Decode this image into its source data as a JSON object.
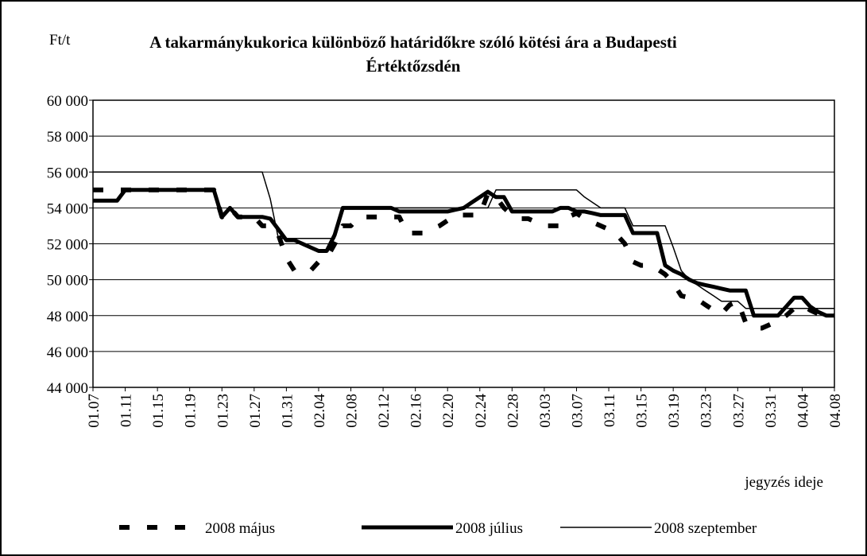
{
  "chart_data": {
    "type": "line",
    "title": "A takarmánykukorica különböző határidőkre szóló kötési ára a  Budapesti Értéktőzsdén",
    "y_label": "Ft/t",
    "x_label": "jegyzés ideje",
    "categories": [
      "01.07",
      null,
      null,
      null,
      "01.11",
      null,
      null,
      null,
      "01.15",
      null,
      null,
      null,
      "01.19",
      null,
      null,
      null,
      "01.23",
      null,
      null,
      null,
      "01.27",
      null,
      null,
      null,
      "01.31",
      null,
      null,
      null,
      "02.04",
      null,
      null,
      null,
      "02.08",
      null,
      null,
      null,
      "02.12",
      null,
      null,
      null,
      "02.16",
      null,
      null,
      null,
      "02.20",
      null,
      null,
      null,
      "02.24",
      null,
      null,
      null,
      "02.28",
      null,
      null,
      null,
      "03.03",
      null,
      null,
      null,
      "03.07",
      null,
      null,
      null,
      "03.11",
      null,
      null,
      null,
      "03.15",
      null,
      null,
      null,
      "03.19",
      null,
      null,
      null,
      "03.23",
      null,
      null,
      null,
      "03.27",
      null,
      null,
      null,
      "03.31",
      null,
      null,
      null,
      "04.04",
      null,
      null,
      null,
      "04.08"
    ],
    "series": [
      {
        "name": "2008 május",
        "color": "#000000",
        "style": "dashed",
        "values": [
          55000,
          55000,
          55000,
          55000,
          55000,
          55000,
          55000,
          55000,
          55000,
          55000,
          55000,
          55000,
          55000,
          55000,
          55000,
          55000,
          53500,
          54000,
          53500,
          53500,
          53500,
          53000,
          53000,
          52500,
          51200,
          50500,
          50500,
          50500,
          51000,
          51200,
          52000,
          53000,
          53000,
          53500,
          53500,
          53500,
          53500,
          53500,
          53500,
          52600,
          52600,
          52600,
          52800,
          53000,
          53300,
          53600,
          53600,
          53600,
          53600,
          54800,
          54600,
          54000,
          53600,
          53400,
          53400,
          53200,
          53000,
          53000,
          53000,
          53500,
          53700,
          53400,
          53200,
          53000,
          52800,
          52500,
          52000,
          51000,
          50800,
          50800,
          50600,
          50300,
          49800,
          49100,
          49000,
          48900,
          48600,
          48300,
          48100,
          48600,
          48800,
          47600,
          47300,
          47300,
          47500,
          47700,
          48000,
          48400,
          48600,
          48300,
          48100,
          47900,
          48000
        ]
      },
      {
        "name": "2008 július",
        "color": "#000000",
        "style": "thick",
        "values": [
          54400,
          54400,
          54400,
          54400,
          55000,
          55000,
          55000,
          55000,
          55000,
          55000,
          55000,
          55000,
          55000,
          55000,
          55000,
          55000,
          53500,
          54000,
          53500,
          53500,
          53500,
          53500,
          53400,
          52800,
          52200,
          52200,
          52000,
          51800,
          51600,
          51600,
          52500,
          54000,
          54000,
          54000,
          54000,
          54000,
          54000,
          54000,
          53800,
          53800,
          53800,
          53800,
          53800,
          53800,
          53800,
          53900,
          54000,
          54300,
          54600,
          54900,
          54600,
          54600,
          53800,
          53800,
          53800,
          53800,
          53800,
          53800,
          54000,
          54000,
          53800,
          53800,
          53700,
          53600,
          53600,
          53600,
          53600,
          52600,
          52600,
          52600,
          52600,
          50800,
          50500,
          50300,
          50000,
          49800,
          49700,
          49600,
          49500,
          49400,
          49400,
          49400,
          48000,
          48000,
          48000,
          48000,
          48500,
          49000,
          49000,
          48500,
          48200,
          48000,
          48000
        ]
      },
      {
        "name": "2008 szeptember",
        "color": "#000000",
        "style": "thin",
        "values": [
          56000,
          56000,
          56000,
          56000,
          56000,
          56000,
          56000,
          56000,
          56000,
          56000,
          56000,
          56000,
          56000,
          56000,
          56000,
          56000,
          56000,
          56000,
          56000,
          56000,
          56000,
          56000,
          54500,
          52300,
          52300,
          52300,
          52300,
          52300,
          52300,
          52300,
          52300,
          54000,
          54000,
          54000,
          54000,
          54000,
          54000,
          54000,
          54000,
          54000,
          54000,
          54000,
          54000,
          54000,
          54000,
          54000,
          54000,
          54000,
          54000,
          54000,
          55000,
          55000,
          55000,
          55000,
          55000,
          55000,
          55000,
          55000,
          55000,
          55000,
          55000,
          54600,
          54300,
          54000,
          54000,
          54000,
          54000,
          53000,
          53000,
          53000,
          53000,
          53000,
          51800,
          50500,
          50000,
          49700,
          49400,
          49100,
          48800,
          48800,
          48800,
          48400,
          48400,
          48400,
          48400,
          48400,
          48400,
          48400,
          48400,
          48400,
          48400,
          48400,
          48400
        ]
      }
    ],
    "ylim": [
      44000,
      60000
    ],
    "yticks": [
      {
        "value": 44000,
        "label": "44 000"
      },
      {
        "value": 46000,
        "label": "46 000"
      },
      {
        "value": 48000,
        "label": "48 000"
      },
      {
        "value": 50000,
        "label": "50 000"
      },
      {
        "value": 52000,
        "label": "52 000"
      },
      {
        "value": 54000,
        "label": "54 000"
      },
      {
        "value": 56000,
        "label": "56 000"
      },
      {
        "value": 58000,
        "label": "58 000"
      },
      {
        "value": 60000,
        "label": "60 000"
      }
    ],
    "grid": true,
    "legend": "bottom"
  }
}
